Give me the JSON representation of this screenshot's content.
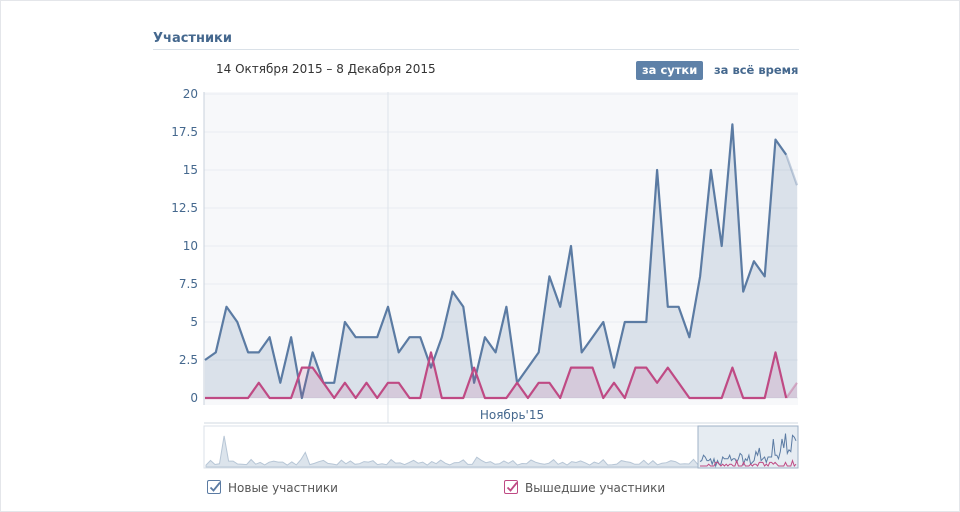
{
  "section_title": "Участники",
  "date_range": "14 Октября 2015 – 8 Декабря 2015",
  "period_buttons": {
    "day": "за сутки",
    "all_time": "за всё время"
  },
  "colors": {
    "new_series": "#5b7ba3",
    "left_series": "#bf4a84",
    "axis_text": "#45688e",
    "grid": "#e9edf1",
    "plot_bg": "#f7f8fa"
  },
  "chart_data": {
    "type": "area",
    "title": "",
    "xlabel": "",
    "ylabel": "",
    "ylim": [
      0,
      20
    ],
    "y_ticks": [
      "0",
      "2.5",
      "5",
      "7.5",
      "10",
      "12.5",
      "15",
      "17.5",
      "20"
    ],
    "x_tick_label": "Ноябрь'15",
    "x_tick_index": 17,
    "grid": true,
    "legend_position": "bottom",
    "series": [
      {
        "name": "Новые участники",
        "checked": true,
        "values": [
          2.5,
          3,
          6,
          5,
          3,
          3,
          4,
          1,
          4,
          0,
          3,
          1,
          1,
          5,
          4,
          4,
          4,
          6,
          3,
          4,
          4,
          2,
          4,
          7,
          6,
          1,
          4,
          3,
          6,
          1,
          2,
          3,
          8,
          6,
          10,
          3,
          4,
          5,
          2,
          5,
          5,
          5,
          15,
          6,
          6,
          4,
          8,
          15,
          10,
          18,
          7,
          9,
          8,
          17,
          16,
          14
        ]
      },
      {
        "name": "Вышедшие участники",
        "checked": true,
        "values": [
          0,
          0,
          0,
          0,
          0,
          1,
          0,
          0,
          0,
          2,
          2,
          1,
          0,
          1,
          0,
          1,
          0,
          1,
          1,
          0,
          0,
          3,
          0,
          0,
          0,
          2,
          0,
          0,
          0,
          1,
          0,
          1,
          1,
          0,
          2,
          2,
          2,
          0,
          1,
          0,
          2,
          2,
          1,
          2,
          1,
          0,
          0,
          0,
          0,
          2,
          0,
          0,
          0,
          3,
          0,
          1
        ]
      }
    ],
    "overview": {
      "selected_range": "14 Октября 2015 – 8 Декабря 2015"
    }
  }
}
